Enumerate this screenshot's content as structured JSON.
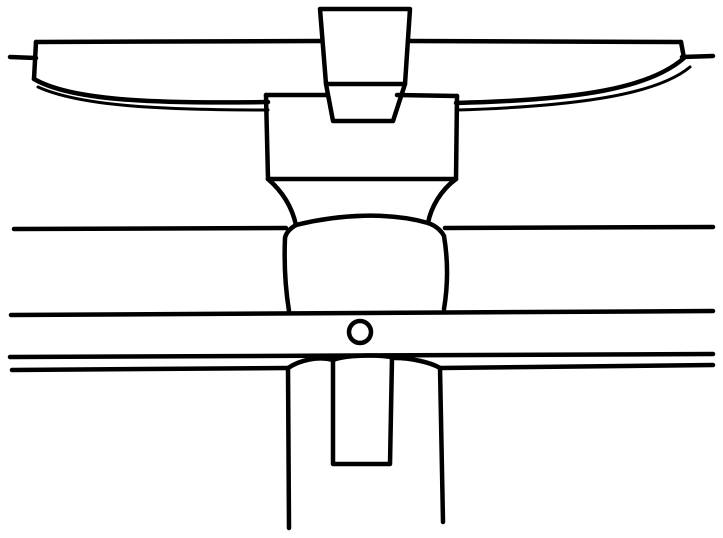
{
  "drawing": {
    "background_color": "#ffffff",
    "line_color": "#000000",
    "parts": [
      "top-cap-block",
      "curved-top-beam",
      "upper-bracket-block",
      "bracket-neck",
      "middle-cushion-block",
      "upper-horizontal-beam",
      "lower-horizontal-beam",
      "peg-hole",
      "column-post",
      "inner-tenon"
    ]
  }
}
